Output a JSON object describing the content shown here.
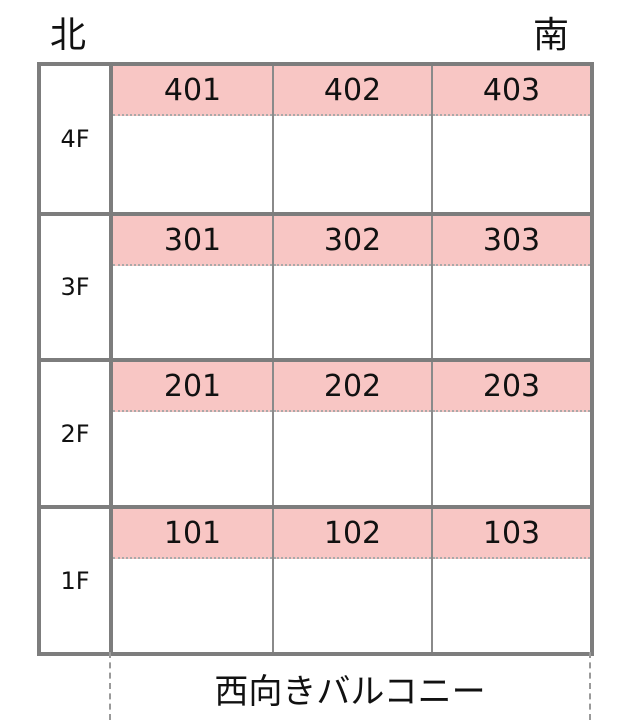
{
  "compass": {
    "north": "北",
    "south": "南"
  },
  "floors": [
    {
      "label": "4F",
      "rooms": [
        "401",
        "402",
        "403"
      ]
    },
    {
      "label": "3F",
      "rooms": [
        "301",
        "302",
        "303"
      ]
    },
    {
      "label": "2F",
      "rooms": [
        "201",
        "202",
        "203"
      ]
    },
    {
      "label": "1F",
      "rooms": [
        "101",
        "102",
        "103"
      ]
    }
  ],
  "balcony_label": "西向きバルコニー",
  "colors": {
    "room_header": "#f8c6c4",
    "border": "#7d7d7d"
  }
}
